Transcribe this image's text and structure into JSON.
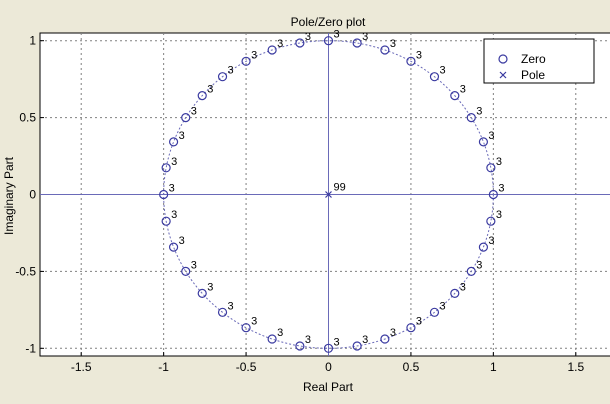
{
  "chart_data": {
    "type": "scatter",
    "title": "Pole/Zero plot",
    "xlabel": "Real Part",
    "ylabel": "Imaginary Part",
    "xlim": [
      -1.75,
      1.75
    ],
    "ylim": [
      -1.05,
      1.05
    ],
    "xticks": [
      -1.5,
      -1,
      -0.5,
      0,
      0.5,
      1,
      1.5
    ],
    "xtick_labels": [
      "-1.5",
      "-1",
      "-0.5",
      "0",
      "0.5",
      "1",
      "1.5"
    ],
    "yticks": [
      -1,
      -0.5,
      0,
      0.5,
      1
    ],
    "ytick_labels": [
      "-1",
      "-0.5",
      "0",
      "0.5",
      "1"
    ],
    "grid": true,
    "grid_style": "dotted",
    "legend_position": "top-right",
    "unit_circle": true,
    "series": [
      {
        "name": "Zero",
        "marker": "circle",
        "multiplicity_label": "3",
        "note": "zeros of multiplicity 3 on the unit circle, angles in degrees",
        "angles_deg": [
          0,
          10,
          20,
          30,
          40,
          50,
          60,
          70,
          80,
          90,
          100,
          110,
          120,
          130,
          140,
          150,
          160,
          170,
          180,
          190,
          200,
          210,
          220,
          230,
          240,
          250,
          260,
          270,
          280,
          290,
          300,
          310,
          320,
          330,
          340,
          350
        ]
      },
      {
        "name": "Pole",
        "marker": "x",
        "points": [
          {
            "x": 0,
            "y": 0
          }
        ],
        "multiplicity_label": "99"
      }
    ],
    "colors": {
      "marker": "#3a3aa0",
      "axes_line": "#6a6ab8",
      "grid": "#808080",
      "background": "#ece9d8"
    }
  }
}
